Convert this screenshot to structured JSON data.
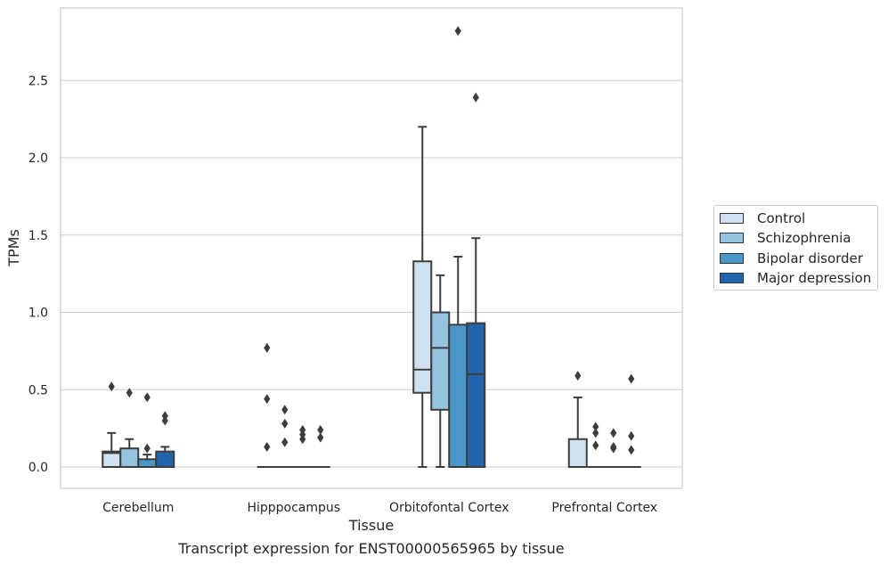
{
  "chart_data": {
    "type": "box",
    "xlabel": "Tissue",
    "ylabel": "TPMs",
    "ylim": [
      -0.14,
      2.96
    ],
    "yticks": [
      0.0,
      0.5,
      1.0,
      1.5,
      2.0,
      2.5
    ],
    "ytick_labels": [
      "0.0",
      "0.5",
      "1.0",
      "1.5",
      "2.0",
      "2.5"
    ],
    "grid": "horizontal",
    "legend_placement": "right",
    "categories": [
      "Cerebellum",
      "Hipppocampus",
      "Orbitofontal Cortex",
      "Prefrontal Cortex"
    ],
    "series": [
      {
        "name": "Control",
        "color": "#d0e1f2",
        "boxes": [
          {
            "whislo": 0.0,
            "q1": 0.0,
            "med": 0.09,
            "q3": 0.1,
            "whishi": 0.22,
            "fliers": [
              0.52
            ]
          },
          {
            "whislo": 0.0,
            "q1": 0.0,
            "med": 0.0,
            "q3": 0.0,
            "whishi": 0.0,
            "fliers": [
              0.77,
              0.44,
              0.13
            ]
          },
          {
            "whislo": 0.0,
            "q1": 0.48,
            "med": 0.63,
            "q3": 1.33,
            "whishi": 2.2,
            "fliers": []
          },
          {
            "whislo": 0.0,
            "q1": 0.0,
            "med": 0.0,
            "q3": 0.18,
            "whishi": 0.45,
            "fliers": [
              0.59
            ]
          }
        ]
      },
      {
        "name": "Schizophrenia",
        "color": "#94c4df",
        "boxes": [
          {
            "whislo": 0.0,
            "q1": 0.0,
            "med": 0.0,
            "q3": 0.12,
            "whishi": 0.18,
            "fliers": [
              0.48
            ]
          },
          {
            "whislo": 0.0,
            "q1": 0.0,
            "med": 0.0,
            "q3": 0.0,
            "whishi": 0.0,
            "fliers": [
              0.37,
              0.28,
              0.16
            ]
          },
          {
            "whislo": 0.0,
            "q1": 0.37,
            "med": 0.77,
            "q3": 1.0,
            "whishi": 1.24,
            "fliers": []
          },
          {
            "whislo": 0.0,
            "q1": 0.0,
            "med": 0.0,
            "q3": 0.0,
            "whishi": 0.0,
            "fliers": [
              0.26,
              0.22,
              0.14
            ]
          }
        ]
      },
      {
        "name": "Bipolar disorder",
        "color": "#4a98c9",
        "boxes": [
          {
            "whislo": 0.0,
            "q1": 0.0,
            "med": 0.0,
            "q3": 0.05,
            "whishi": 0.08,
            "fliers": [
              0.45,
              0.12
            ]
          },
          {
            "whislo": 0.0,
            "q1": 0.0,
            "med": 0.0,
            "q3": 0.0,
            "whishi": 0.0,
            "fliers": [
              0.24,
              0.21,
              0.18
            ]
          },
          {
            "whislo": 0.0,
            "q1": 0.0,
            "med": 0.0,
            "q3": 0.92,
            "whishi": 1.36,
            "fliers": [
              2.82
            ]
          },
          {
            "whislo": 0.0,
            "q1": 0.0,
            "med": 0.0,
            "q3": 0.0,
            "whishi": 0.0,
            "fliers": [
              0.22,
              0.13,
              0.12
            ]
          }
        ]
      },
      {
        "name": "Major depression",
        "color": "#2166ac",
        "boxes": [
          {
            "whislo": 0.0,
            "q1": 0.0,
            "med": 0.0,
            "q3": 0.1,
            "whishi": 0.13,
            "fliers": [
              0.33,
              0.3
            ]
          },
          {
            "whislo": 0.0,
            "q1": 0.0,
            "med": 0.0,
            "q3": 0.0,
            "whishi": 0.0,
            "fliers": [
              0.24,
              0.19
            ]
          },
          {
            "whislo": 0.0,
            "q1": 0.0,
            "med": 0.6,
            "q3": 0.93,
            "whishi": 1.48,
            "fliers": [
              2.39
            ]
          },
          {
            "whislo": 0.0,
            "q1": 0.0,
            "med": 0.0,
            "q3": 0.0,
            "whishi": 0.0,
            "fliers": [
              0.57,
              0.2,
              0.11
            ]
          }
        ]
      }
    ]
  },
  "legend": {
    "items": [
      {
        "label": "Control",
        "color": "#d0e1f2"
      },
      {
        "label": "Schizophrenia",
        "color": "#94c4df"
      },
      {
        "label": "Bipolar disorder",
        "color": "#4a98c9"
      },
      {
        "label": "Major depression",
        "color": "#2166ac"
      }
    ]
  },
  "caption": "Transcript expression for ENST00000565965 by tissue"
}
